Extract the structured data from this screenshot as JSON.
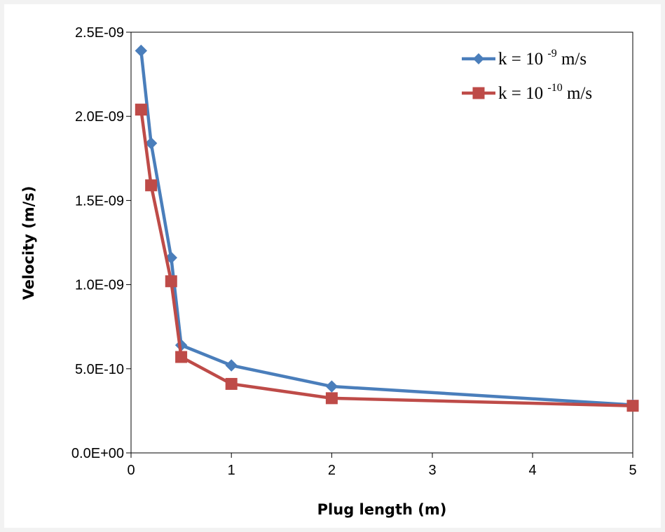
{
  "chart_data": {
    "type": "line",
    "title": "",
    "xlabel": "Plug length (m)",
    "ylabel": "Velocity (m/s)",
    "x_ticks": [
      "0",
      "1",
      "2",
      "3",
      "4",
      "5"
    ],
    "y_ticks": [
      "0.0E+00",
      "5.0E-10",
      "1.0E-09",
      "1.5E-09",
      "2.0E-09",
      "2.5E-09"
    ],
    "ylim": [
      0,
      2.5e-09
    ],
    "grid": false,
    "legend_position": "top-right",
    "series": [
      {
        "name": "k = 10-9 m/s",
        "legend_base": "k = 10",
        "legend_exp": "-9",
        "legend_unit": "m/s",
        "color": "#4a7ebb",
        "marker": "diamond",
        "x": [
          0.1,
          0.2,
          0.4,
          0.5,
          1,
          2,
          5
        ],
        "y": [
          2.39e-09,
          1.84e-09,
          1.16e-09,
          6.4e-10,
          5.2e-10,
          3.95e-10,
          2.85e-10
        ]
      },
      {
        "name": "k = 10-10 m/s",
        "legend_base": "k = 10",
        "legend_exp": "-10",
        "legend_unit": "m/s",
        "color": "#be4b48",
        "marker": "square",
        "x": [
          0.1,
          0.2,
          0.4,
          0.5,
          1,
          2,
          5
        ],
        "y": [
          2.04e-09,
          1.59e-09,
          1.02e-09,
          5.7e-10,
          4.1e-10,
          3.25e-10,
          2.8e-10
        ]
      }
    ]
  }
}
